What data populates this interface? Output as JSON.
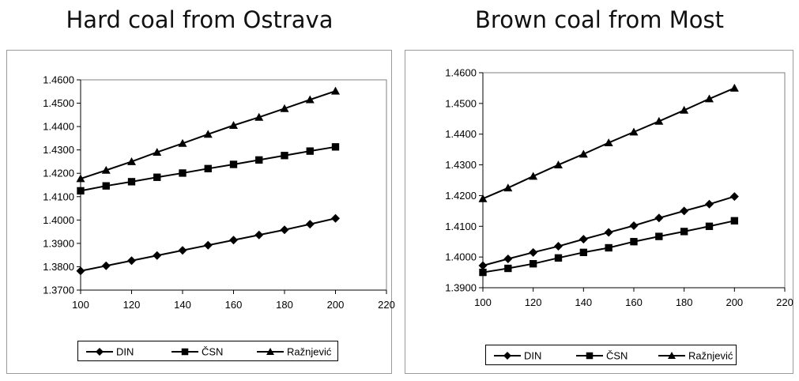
{
  "chart_data": [
    {
      "type": "line",
      "title": "Hard coal from Ostrava",
      "xlabel": "",
      "ylabel": "",
      "xlim": [
        100,
        220
      ],
      "ylim": [
        1.37,
        1.46
      ],
      "x_ticks": [
        100,
        120,
        140,
        160,
        180,
        200,
        220
      ],
      "y_ticks": [
        "1.3700",
        "1.3800",
        "1.3900",
        "1.4000",
        "1.4100",
        "1.4200",
        "1.4300",
        "1.4400",
        "1.4500",
        "1.4600"
      ],
      "grid": false,
      "legend_position": "bottom",
      "x": [
        100,
        110,
        120,
        130,
        140,
        150,
        160,
        170,
        180,
        190,
        200
      ],
      "series": [
        {
          "name": "DIN",
          "marker": "diamond",
          "values": [
            1.3782,
            1.3804,
            1.3826,
            1.3848,
            1.387,
            1.3892,
            1.3914,
            1.3936,
            1.3958,
            1.3982,
            1.4007
          ]
        },
        {
          "name": "ČSN",
          "marker": "square",
          "values": [
            1.4125,
            1.4146,
            1.4164,
            1.4183,
            1.4201,
            1.422,
            1.4238,
            1.4257,
            1.4276,
            1.4295,
            1.4313
          ]
        },
        {
          "name": "Ražnjević",
          "marker": "triangle",
          "values": [
            1.4177,
            1.4213,
            1.425,
            1.429,
            1.4328,
            1.4367,
            1.4405,
            1.444,
            1.4477,
            1.4515,
            1.4552
          ]
        }
      ]
    },
    {
      "type": "line",
      "title": "Brown coal from Most",
      "xlabel": "",
      "ylabel": "",
      "xlim": [
        100,
        220
      ],
      "ylim": [
        1.39,
        1.46
      ],
      "x_ticks": [
        100,
        120,
        140,
        160,
        180,
        200,
        220
      ],
      "y_ticks": [
        "1.3900",
        "1.4000",
        "1.4100",
        "1.4200",
        "1.4300",
        "1.4400",
        "1.4500",
        "1.4600"
      ],
      "grid": false,
      "legend_position": "bottom",
      "x": [
        100,
        110,
        120,
        130,
        140,
        150,
        160,
        170,
        180,
        190,
        200
      ],
      "series": [
        {
          "name": "DIN",
          "marker": "diamond",
          "values": [
            1.3972,
            1.3994,
            1.4015,
            1.4035,
            1.4058,
            1.408,
            1.4102,
            1.4127,
            1.415,
            1.4172,
            1.4197
          ]
        },
        {
          "name": "ČSN",
          "marker": "square",
          "values": [
            1.395,
            1.3963,
            1.3978,
            1.3997,
            1.4015,
            1.403,
            1.405,
            1.4067,
            1.4083,
            1.41,
            1.4118
          ]
        },
        {
          "name": "Ražnjević",
          "marker": "triangle",
          "values": [
            1.419,
            1.4225,
            1.4263,
            1.43,
            1.4335,
            1.4372,
            1.4407,
            1.4442,
            1.4478,
            1.4515,
            1.455
          ]
        }
      ]
    }
  ]
}
